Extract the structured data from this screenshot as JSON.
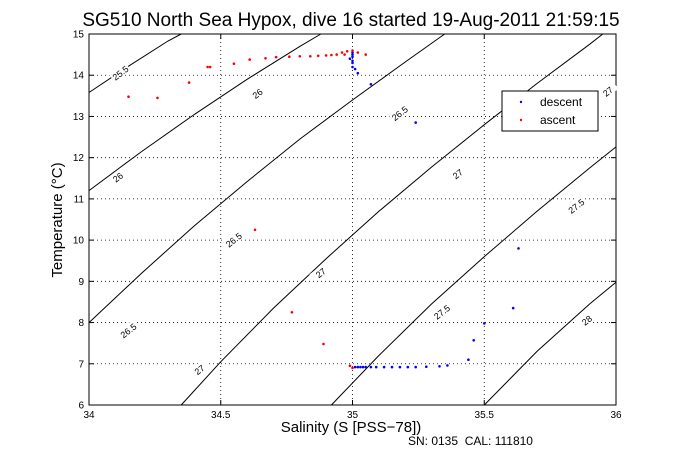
{
  "chart_data": {
    "type": "scatter",
    "title": "SG510 North Sea Hypox, dive 16 started 19-Aug-2011 21:59:15",
    "xlabel": "Salinity (S [PSS−78])",
    "ylabel": "Temperature (°C)",
    "xlim": [
      34,
      36
    ],
    "ylim": [
      6,
      15
    ],
    "x_ticks": [
      34,
      34.5,
      35,
      35.5,
      36
    ],
    "x_tick_labels": [
      "34",
      "34.5",
      "35",
      "35.5",
      "36"
    ],
    "y_ticks": [
      6,
      7,
      8,
      9,
      10,
      11,
      12,
      13,
      14,
      15
    ],
    "y_tick_labels": [
      "6",
      "7",
      "8",
      "9",
      "10",
      "11",
      "12",
      "13",
      "14",
      "15"
    ],
    "grid": true,
    "legend_position": "top-right",
    "footer": "SN: 0135  CAL: 111810",
    "series": [
      {
        "name": "descent",
        "color": "#0000ff",
        "points": [
          [
            35.0,
            14.55
          ],
          [
            35.0,
            14.5
          ],
          [
            35.0,
            14.45
          ],
          [
            34.99,
            14.4
          ],
          [
            35.0,
            14.35
          ],
          [
            35.0,
            14.3
          ],
          [
            35.0,
            14.2
          ],
          [
            35.01,
            14.15
          ],
          [
            35.02,
            14.05
          ],
          [
            35.07,
            13.78
          ],
          [
            35.24,
            12.85
          ],
          [
            35.63,
            9.8
          ],
          [
            35.61,
            8.35
          ],
          [
            35.5,
            7.98
          ],
          [
            35.46,
            7.57
          ],
          [
            35.44,
            7.1
          ],
          [
            35.36,
            6.96
          ],
          [
            35.33,
            6.94
          ],
          [
            35.28,
            6.93
          ],
          [
            35.24,
            6.92
          ],
          [
            35.21,
            6.92
          ],
          [
            35.18,
            6.92
          ],
          [
            35.15,
            6.92
          ],
          [
            35.12,
            6.92
          ],
          [
            35.09,
            6.92
          ],
          [
            35.07,
            6.92
          ],
          [
            35.05,
            6.92
          ],
          [
            35.04,
            6.92
          ],
          [
            35.03,
            6.92
          ],
          [
            35.02,
            6.92
          ],
          [
            35.01,
            6.92
          ]
        ]
      },
      {
        "name": "ascent",
        "color": "#ff0000",
        "points": [
          [
            34.99,
            6.95
          ],
          [
            35.0,
            6.9
          ],
          [
            34.89,
            7.48
          ],
          [
            34.77,
            8.25
          ],
          [
            34.63,
            10.25
          ],
          [
            34.15,
            13.48
          ],
          [
            34.26,
            13.45
          ],
          [
            34.38,
            13.82
          ],
          [
            34.45,
            14.2
          ],
          [
            34.46,
            14.2
          ],
          [
            34.55,
            14.28
          ],
          [
            34.61,
            14.38
          ],
          [
            34.67,
            14.41
          ],
          [
            34.71,
            14.44
          ],
          [
            34.76,
            14.45
          ],
          [
            34.8,
            14.46
          ],
          [
            34.84,
            14.46
          ],
          [
            34.87,
            14.47
          ],
          [
            34.9,
            14.48
          ],
          [
            34.92,
            14.49
          ],
          [
            34.94,
            14.5
          ],
          [
            34.96,
            14.55
          ],
          [
            34.98,
            14.58
          ],
          [
            35.0,
            14.6
          ],
          [
            35.02,
            14.55
          ],
          [
            35.05,
            14.5
          ],
          [
            34.97,
            14.5
          ]
        ]
      }
    ],
    "contours": [
      {
        "level": "25.5",
        "points": [
          [
            34.0,
            13.58
          ],
          [
            34.15,
            14.22
          ],
          [
            34.3,
            14.83
          ],
          [
            34.35,
            15.0
          ]
        ]
      },
      {
        "level": "26",
        "points": [
          [
            34.0,
            11.2
          ],
          [
            34.2,
            12.15
          ],
          [
            34.4,
            13.05
          ],
          [
            34.6,
            13.9
          ],
          [
            34.8,
            14.7
          ],
          [
            34.88,
            15.0
          ]
        ]
      },
      {
        "level": "26.5",
        "points": [
          [
            34.0,
            8.0
          ],
          [
            34.2,
            9.2
          ],
          [
            34.4,
            10.35
          ],
          [
            34.6,
            11.42
          ],
          [
            34.8,
            12.45
          ],
          [
            35.0,
            13.4
          ],
          [
            35.2,
            14.32
          ],
          [
            35.35,
            15.0
          ]
        ]
      },
      {
        "level": "27",
        "points": [
          [
            34.35,
            6.0
          ],
          [
            34.5,
            7.05
          ],
          [
            34.7,
            8.35
          ],
          [
            34.9,
            9.55
          ],
          [
            35.1,
            10.7
          ],
          [
            35.3,
            11.77
          ],
          [
            35.5,
            12.8
          ],
          [
            35.7,
            13.8
          ],
          [
            35.9,
            14.75
          ],
          [
            35.95,
            15.0
          ]
        ]
      },
      {
        "level": "27.5",
        "points": [
          [
            34.92,
            6.0
          ],
          [
            35.1,
            7.2
          ],
          [
            35.3,
            8.45
          ],
          [
            35.5,
            9.6
          ],
          [
            35.7,
            10.7
          ],
          [
            35.9,
            11.75
          ],
          [
            36.0,
            12.26
          ]
        ]
      },
      {
        "level": "28",
        "points": [
          [
            35.5,
            6.0
          ],
          [
            35.7,
            7.3
          ],
          [
            35.9,
            8.45
          ],
          [
            36.0,
            8.98
          ]
        ]
      }
    ],
    "contour_labels": [
      {
        "text": "25.5",
        "x": 34.12,
        "y": 14.05
      },
      {
        "text": "26",
        "x": 34.64,
        "y": 13.55
      },
      {
        "text": "26",
        "x": 34.11,
        "y": 11.52
      },
      {
        "text": "26.5",
        "x": 35.18,
        "y": 13.07
      },
      {
        "text": "26.5",
        "x": 34.55,
        "y": 10.0
      },
      {
        "text": "26.5",
        "x": 34.15,
        "y": 7.8
      },
      {
        "text": "27",
        "x": 35.4,
        "y": 11.6
      },
      {
        "text": "27",
        "x": 34.88,
        "y": 9.2
      },
      {
        "text": "27",
        "x": 34.42,
        "y": 6.85
      },
      {
        "text": "27.5",
        "x": 35.85,
        "y": 10.82
      },
      {
        "text": "27.5",
        "x": 35.34,
        "y": 8.25
      },
      {
        "text": "28",
        "x": 35.89,
        "y": 8.05
      },
      {
        "text": "27",
        "x": 35.97,
        "y": 13.6
      }
    ]
  }
}
